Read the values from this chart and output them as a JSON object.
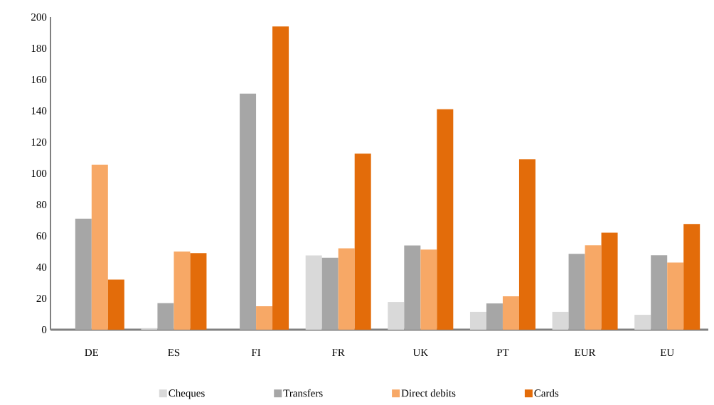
{
  "chart_data": {
    "type": "bar",
    "categories": [
      "DE",
      "ES",
      "FI",
      "FR",
      "UK",
      "PT",
      "EUR",
      "EU"
    ],
    "series": [
      {
        "name": "Cheques",
        "color": "#d9d9d9",
        "values": [
          null,
          1,
          null,
          47.5,
          17.7,
          11.4,
          11.4,
          9.5
        ]
      },
      {
        "name": "Transfers",
        "color": "#a6a6a6",
        "values": [
          71,
          17,
          151,
          46,
          53.9,
          16.8,
          48.5,
          47.6
        ]
      },
      {
        "name": "Direct debits",
        "color": "#f7a866",
        "values": [
          105.6,
          50,
          15,
          52,
          51.2,
          21.4,
          54,
          43
        ]
      },
      {
        "name": "Cards",
        "color": "#e36c0a",
        "values": [
          32,
          49,
          194,
          112.6,
          141,
          109,
          62,
          67.6
        ]
      }
    ],
    "ylim": [
      0,
      200
    ],
    "yticks": [
      0,
      20,
      40,
      60,
      80,
      100,
      120,
      140,
      160,
      180,
      200
    ],
    "legend": "bottom",
    "grid": false
  }
}
